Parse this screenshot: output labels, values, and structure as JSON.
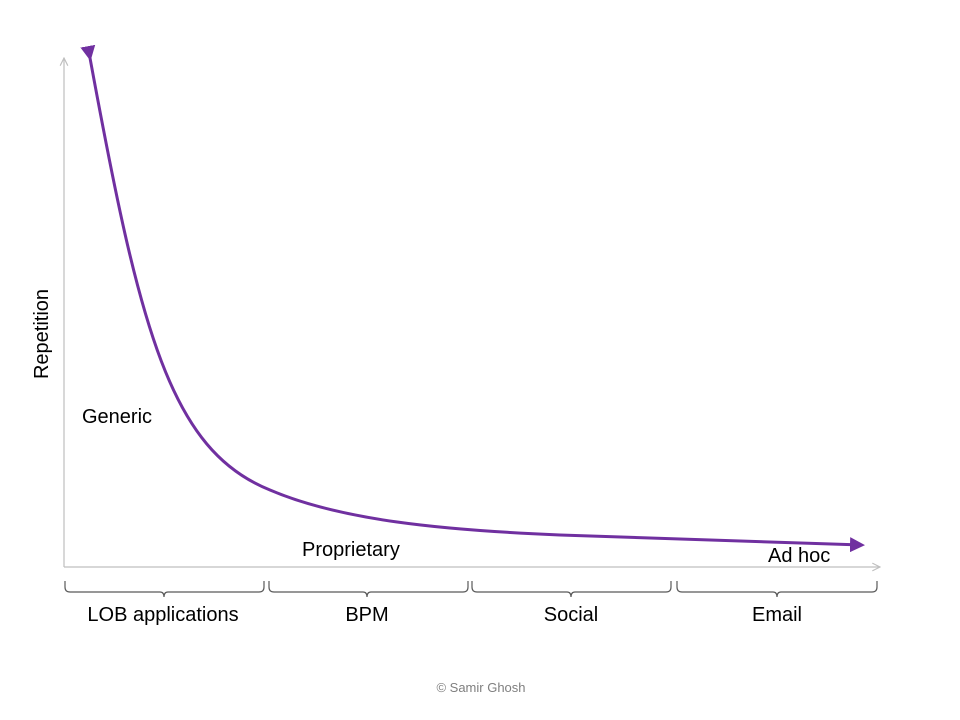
{
  "diagram": {
    "y_axis_label": "Repetition",
    "curve_labels": {
      "generic": "Generic",
      "proprietary": "Proprietary",
      "ad_hoc": "Ad hoc"
    },
    "categories": [
      "LOB applications",
      "BPM",
      "Social",
      "Email"
    ],
    "copyright": "© Samir Ghosh",
    "colors": {
      "curve": "#7030a0",
      "axis": "#bfbfbf",
      "bracket": "#595959",
      "copyright": "#7f7f7f"
    }
  }
}
